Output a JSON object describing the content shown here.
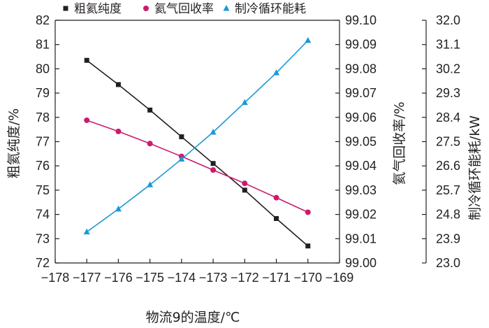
{
  "chart_data": {
    "type": "line",
    "x": [
      -177,
      -176,
      -175,
      -174,
      -173,
      -172,
      -171,
      -170
    ],
    "xlim": [
      -178,
      -169
    ],
    "xticks": [
      "-178",
      "-177",
      "-176",
      "-175",
      "-174",
      "-173",
      "-172",
      "-171",
      "-170",
      "-169"
    ],
    "xlabel": "物流9的温度/℃",
    "axes": {
      "left": {
        "label": "粗氦纯度/%",
        "ylim": [
          72,
          82
        ],
        "ticks": [
          "72",
          "73",
          "74",
          "75",
          "76",
          "77",
          "78",
          "79",
          "80",
          "81",
          "82"
        ]
      },
      "right1": {
        "label": "氦气回收率/%",
        "ylim": [
          99.0,
          99.1
        ],
        "ticks": [
          "99.00",
          "99.01",
          "99.02",
          "99.03",
          "99.04",
          "99.05",
          "99.06",
          "99.07",
          "99.08",
          "99.09",
          "99.10"
        ]
      },
      "right2": {
        "label": "制冷循环能耗/kW",
        "ylim": [
          23.0,
          32.0
        ],
        "ticks": [
          "23.0",
          "23.9",
          "24.8",
          "25.7",
          "26.6",
          "27.5",
          "28.4",
          "29.3",
          "30.2",
          "31.1",
          "32.0"
        ]
      }
    },
    "series": [
      {
        "name": "粗氦纯度",
        "axis": "left",
        "marker": "square",
        "color": "#231f20",
        "values": [
          80.35,
          79.35,
          78.3,
          77.2,
          76.1,
          75.0,
          73.83,
          72.7
        ]
      },
      {
        "name": "氦气回收率",
        "axis": "right1",
        "marker": "circle",
        "color": "#cc1a6e",
        "values": [
          99.0588,
          99.0542,
          99.0492,
          99.0439,
          99.0383,
          99.0328,
          99.0269,
          99.0209
        ]
      },
      {
        "name": "制冷循环能耗",
        "axis": "right2",
        "marker": "triangle",
        "color": "#1a9ad6",
        "values": [
          24.15,
          25.0,
          25.9,
          26.85,
          27.85,
          28.95,
          30.05,
          31.25
        ]
      }
    ],
    "legend_position": "top",
    "grid": false
  }
}
